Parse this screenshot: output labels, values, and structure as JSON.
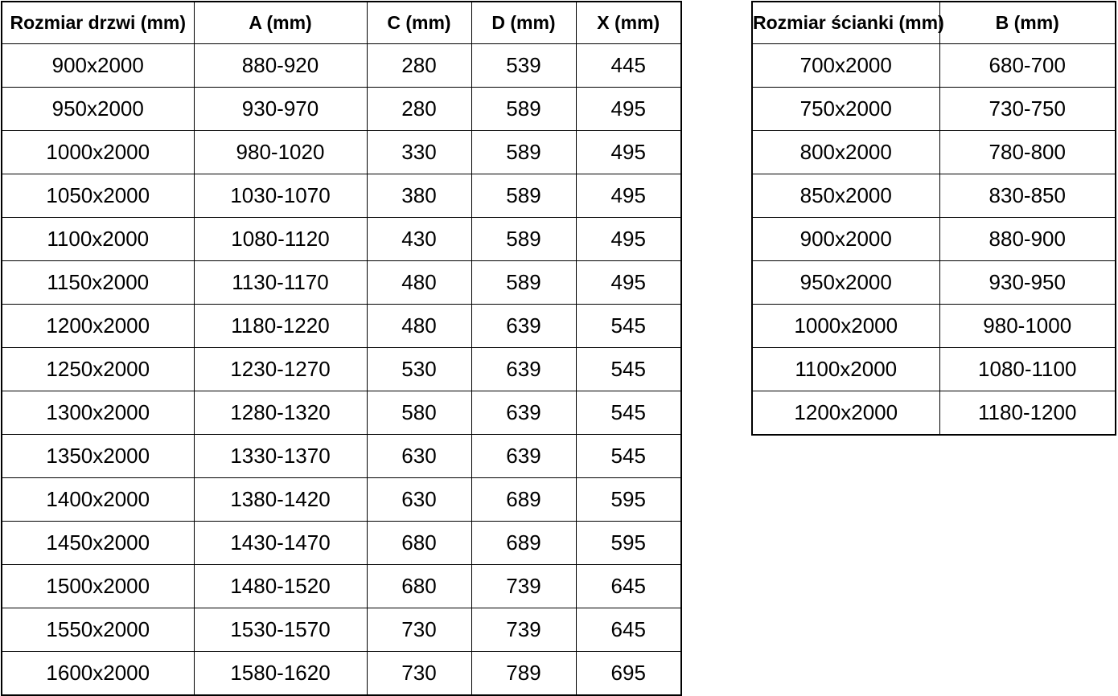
{
  "chart_data": [
    {
      "type": "table",
      "name": "door-sizes",
      "columns": [
        "Rozmiar drzwi (mm)",
        "A (mm)",
        "C (mm)",
        "D (mm)",
        "X (mm)"
      ],
      "rows": [
        [
          "900x2000",
          "880-920",
          "280",
          "539",
          "445"
        ],
        [
          "950x2000",
          "930-970",
          "280",
          "589",
          "495"
        ],
        [
          "1000x2000",
          "980-1020",
          "330",
          "589",
          "495"
        ],
        [
          "1050x2000",
          "1030-1070",
          "380",
          "589",
          "495"
        ],
        [
          "1100x2000",
          "1080-1120",
          "430",
          "589",
          "495"
        ],
        [
          "1150x2000",
          "1130-1170",
          "480",
          "589",
          "495"
        ],
        [
          "1200x2000",
          "1180-1220",
          "480",
          "639",
          "545"
        ],
        [
          "1250x2000",
          "1230-1270",
          "530",
          "639",
          "545"
        ],
        [
          "1300x2000",
          "1280-1320",
          "580",
          "639",
          "545"
        ],
        [
          "1350x2000",
          "1330-1370",
          "630",
          "639",
          "545"
        ],
        [
          "1400x2000",
          "1380-1420",
          "630",
          "689",
          "595"
        ],
        [
          "1450x2000",
          "1430-1470",
          "680",
          "689",
          "595"
        ],
        [
          "1500x2000",
          "1480-1520",
          "680",
          "739",
          "645"
        ],
        [
          "1550x2000",
          "1530-1570",
          "730",
          "739",
          "645"
        ],
        [
          "1600x2000",
          "1580-1620",
          "730",
          "789",
          "695"
        ]
      ]
    },
    {
      "type": "table",
      "name": "wall-panel-sizes",
      "columns": [
        "Rozmiar ścianki (mm)",
        "B (mm)"
      ],
      "rows": [
        [
          "700x2000",
          "680-700"
        ],
        [
          "750x2000",
          "730-750"
        ],
        [
          "800x2000",
          "780-800"
        ],
        [
          "850x2000",
          "830-850"
        ],
        [
          "900x2000",
          "880-900"
        ],
        [
          "950x2000",
          "930-950"
        ],
        [
          "1000x2000",
          "980-1000"
        ],
        [
          "1100x2000",
          "1080-1100"
        ],
        [
          "1200x2000",
          "1180-1200"
        ]
      ]
    }
  ],
  "colors": {
    "border": "#000000",
    "text": "#000000",
    "background": "#ffffff"
  }
}
